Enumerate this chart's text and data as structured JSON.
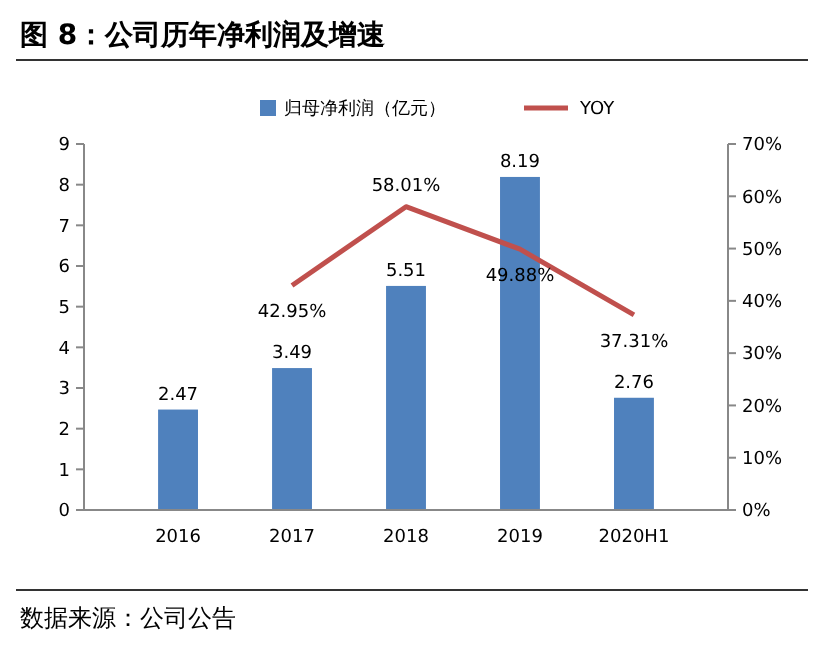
{
  "chart_data": {
    "type": "bar",
    "title": "图 8：公司历年净利润及增速",
    "categories": [
      "2016",
      "2017",
      "2018",
      "2019",
      "2020H1"
    ],
    "series": [
      {
        "name": "归母净利润（亿元）",
        "color": "#4f81bd",
        "values": [
          2.47,
          3.49,
          5.51,
          8.19,
          2.76
        ],
        "value_labels": [
          "2.47",
          "3.49",
          "5.51",
          "8.19",
          "2.76"
        ]
      },
      {
        "name": "YOY",
        "type": "line",
        "axis": "y2",
        "color": "#c0504d",
        "values": [
          null,
          42.95,
          58.01,
          49.88,
          37.31
        ],
        "value_labels": [
          null,
          "42.95%",
          "58.01%",
          "49.88%",
          "37.31%"
        ]
      }
    ],
    "ylim": [
      0,
      9
    ],
    "yticks": [
      0,
      1,
      2,
      3,
      4,
      5,
      6,
      7,
      8,
      9
    ],
    "y2lim": [
      0,
      70
    ],
    "y2ticks": [
      {
        "value": 0,
        "label": "0%"
      },
      {
        "value": 10,
        "label": "10%"
      },
      {
        "value": 20,
        "label": "20%"
      },
      {
        "value": 30,
        "label": "30%"
      },
      {
        "value": 40,
        "label": "40%"
      },
      {
        "value": 50,
        "label": "50%"
      },
      {
        "value": 60,
        "label": "60%"
      },
      {
        "value": 70,
        "label": "70%"
      }
    ],
    "legend": "top",
    "grid": false,
    "annotations": [
      "数据来源：公司公告"
    ]
  }
}
